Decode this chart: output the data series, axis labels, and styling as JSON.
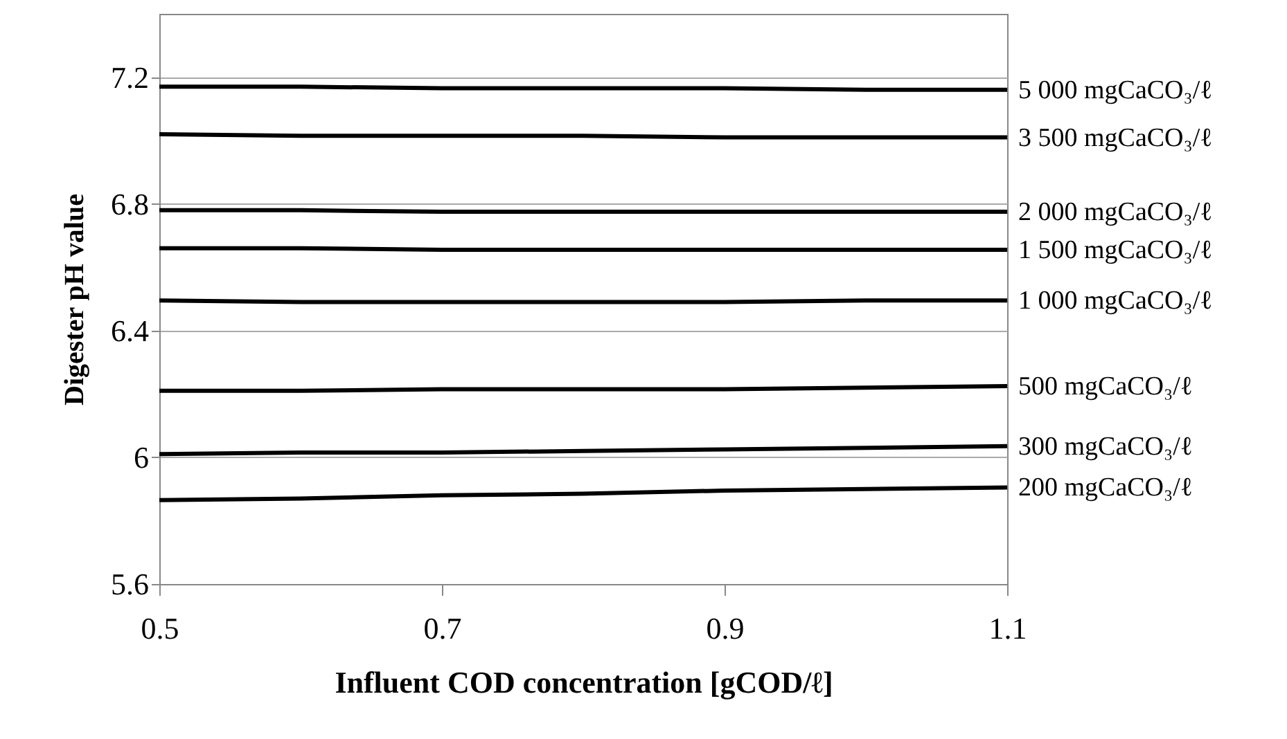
{
  "chart_data": {
    "type": "line",
    "xlabel": "Influent COD concentration [gCOD/ℓ]",
    "ylabel": "Digester pH value",
    "x": [
      0.5,
      0.6,
      0.7,
      0.8,
      0.9,
      1.0,
      1.1
    ],
    "series": [
      {
        "name": "5 000 mgCaCO₃/ℓ",
        "color": "#000000",
        "values": [
          7.17,
          7.17,
          7.165,
          7.165,
          7.165,
          7.16,
          7.16
        ]
      },
      {
        "name": "3 500 mgCaCO₃/ℓ",
        "color": "#000000",
        "values": [
          7.02,
          7.015,
          7.015,
          7.015,
          7.01,
          7.01,
          7.01
        ]
      },
      {
        "name": "2 000 mgCaCO₃/ℓ",
        "color": "#000000",
        "values": [
          6.78,
          6.78,
          6.775,
          6.775,
          6.775,
          6.775,
          6.775
        ]
      },
      {
        "name": "1 500 mgCaCO₃/ℓ",
        "color": "#000000",
        "values": [
          6.66,
          6.66,
          6.655,
          6.655,
          6.655,
          6.655,
          6.655
        ]
      },
      {
        "name": "1 000 mgCaCO₃/ℓ",
        "color": "#000000",
        "values": [
          6.495,
          6.49,
          6.49,
          6.49,
          6.49,
          6.495,
          6.495
        ]
      },
      {
        "name": "500 mgCaCO₃/ℓ",
        "color": "#000000",
        "values": [
          6.21,
          6.21,
          6.215,
          6.215,
          6.215,
          6.22,
          6.225
        ]
      },
      {
        "name": "300 mgCaCO₃/ℓ",
        "color": "#000000",
        "values": [
          6.01,
          6.015,
          6.015,
          6.02,
          6.025,
          6.03,
          6.035
        ]
      },
      {
        "name": "200 mgCaCO₃/ℓ",
        "color": "#000000",
        "values": [
          5.865,
          5.87,
          5.88,
          5.885,
          5.895,
          5.9,
          5.905
        ]
      }
    ],
    "xlim": [
      0.5,
      1.1
    ],
    "xticks": [
      0.5,
      0.7,
      0.9,
      1.1
    ],
    "ylim": [
      5.6,
      7.4
    ],
    "yticks": [
      5.6,
      6,
      6.4,
      6.8,
      7.2
    ],
    "grid": "y",
    "legend": false,
    "marker": "none",
    "line_style": "solid"
  }
}
